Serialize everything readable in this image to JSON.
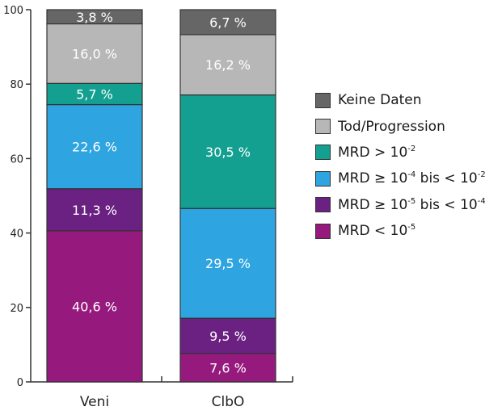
{
  "chart_data": {
    "type": "bar",
    "stacked": true,
    "categories": [
      "Veni",
      "ClbO"
    ],
    "ylim": [
      0,
      100
    ],
    "yticks": [
      0,
      20,
      40,
      60,
      80,
      100
    ],
    "series": [
      {
        "name": "MRD < 10-5",
        "color": "#961A7D",
        "values": [
          40.6,
          7.6
        ],
        "labels": [
          "40,6 %",
          "7,6 %"
        ]
      },
      {
        "name": "MRD ≥ 10-5 bis < 10-4",
        "color": "#6A2182",
        "values": [
          11.3,
          9.5
        ],
        "labels": [
          "11,3 %",
          "9,5 %"
        ]
      },
      {
        "name": "MRD ≥ 10-4 bis < 10-2",
        "color": "#2EA4E0",
        "values": [
          22.6,
          29.5
        ],
        "labels": [
          "22,6 %",
          "29,5 %"
        ]
      },
      {
        "name": "MRD > 10-2",
        "color": "#13A090",
        "values": [
          5.7,
          30.5
        ],
        "labels": [
          "5,7 %",
          "30,5 %"
        ]
      },
      {
        "name": "Tod/Progression",
        "color": "#B7B7B7",
        "values": [
          16.0,
          16.2
        ],
        "labels": [
          "16,0 %",
          "16,2 %"
        ]
      },
      {
        "name": "Keine Daten",
        "color": "#666666",
        "values": [
          3.8,
          6.7
        ],
        "labels": [
          "3,8 %",
          "6,7 %"
        ]
      }
    ],
    "legend": {
      "placement": "right",
      "items": [
        {
          "key": "keine-daten",
          "color": "#666666",
          "parts": [
            [
              "Keine Daten",
              ""
            ]
          ]
        },
        {
          "key": "tod-progression",
          "color": "#B7B7B7",
          "parts": [
            [
              "Tod/Progression",
              ""
            ]
          ]
        },
        {
          "key": "mrd-gt-1e-2",
          "color": "#13A090",
          "parts": [
            [
              "MRD > 10",
              "-2"
            ]
          ]
        },
        {
          "key": "mrd-1e-4-to-1e-2",
          "color": "#2EA4E0",
          "parts": [
            [
              "MRD ≥ 10",
              "-4"
            ],
            [
              " bis < 10",
              "-2"
            ]
          ]
        },
        {
          "key": "mrd-1e-5-to-1e-4",
          "color": "#6A2182",
          "parts": [
            [
              "MRD ≥ 10",
              "-5"
            ],
            [
              " bis < 10",
              "-4"
            ]
          ]
        },
        {
          "key": "mrd-lt-1e-5",
          "color": "#961A7D",
          "parts": [
            [
              "MRD < 10",
              "-5"
            ]
          ]
        }
      ]
    },
    "grid": false
  }
}
